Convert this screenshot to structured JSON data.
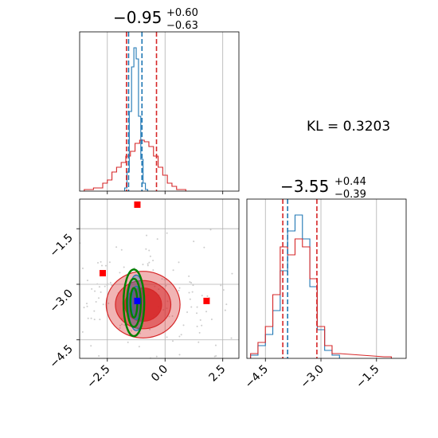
{
  "chart_data": [
    {
      "id": "hist-x",
      "type": "histogram",
      "title_main": "−0.95",
      "title_sup": "+0.60",
      "title_sub": "−0.63",
      "xlim": [
        -3.7,
        3.2
      ],
      "ylim": [
        0,
        1.0
      ],
      "grid": true,
      "xticks": [
        -2.5,
        0.0,
        2.5
      ],
      "quantile_lines": {
        "blue": {
          "color": "#1f77b4",
          "values": [
            -1.58,
            -1.0
          ]
        },
        "red": {
          "color": "#d62728",
          "values": [
            -1.67,
            -0.37
          ]
        }
      },
      "series": [
        {
          "color": "#1f77b4",
          "x": [
            -1.7,
            -1.6,
            -1.5,
            -1.4,
            -1.3,
            -1.2,
            -1.1,
            -1.0,
            -0.9,
            -0.8
          ],
          "values": [
            0.02,
            0.12,
            0.5,
            0.78,
            0.9,
            0.83,
            0.47,
            0.2,
            0.05,
            0.01
          ]
        },
        {
          "color": "#d62728",
          "x": [
            -3.4,
            -3.2,
            -3.0,
            -2.8,
            -2.6,
            -2.4,
            -2.2,
            -2.0,
            -1.8,
            -1.6,
            -1.4,
            -1.2,
            -1.0,
            -0.8,
            -0.6,
            -0.4,
            -0.2,
            0.0,
            0.2,
            0.4,
            0.6,
            0.8
          ],
          "values": [
            0.01,
            0.01,
            0.02,
            0.02,
            0.05,
            0.07,
            0.12,
            0.15,
            0.18,
            0.22,
            0.25,
            0.3,
            0.32,
            0.31,
            0.28,
            0.22,
            0.15,
            0.1,
            0.05,
            0.03,
            0.01,
            0.01
          ]
        }
      ]
    },
    {
      "id": "scatter-xy",
      "type": "scatter",
      "xlim": [
        -3.7,
        3.2
      ],
      "ylim": [
        -5.0,
        -0.7
      ],
      "grid": true,
      "xticks": [
        -2.5,
        0.0,
        2.5
      ],
      "xtick_labels": [
        "−2.5",
        "0.0",
        "2.5"
      ],
      "yticks": [
        -1.5,
        -3.0,
        -4.5
      ],
      "ytick_labels": [
        "−1.5",
        "−3.0",
        "−4.5"
      ],
      "red_markers": [
        {
          "x": -1.2,
          "y": -0.85
        },
        {
          "x": -2.7,
          "y": -2.7
        },
        {
          "x": 1.8,
          "y": -3.45
        }
      ],
      "blue_marker": {
        "x": -1.2,
        "y": -3.45,
        "color": "#0000ff"
      },
      "red_contours": {
        "color": "#d62728",
        "center": [
          -0.95,
          -3.55
        ],
        "levels": [
          [
            1.6,
            0.9
          ],
          [
            1.2,
            0.65
          ],
          [
            0.8,
            0.45
          ]
        ]
      },
      "green_contours": {
        "color": "#008000",
        "center": [
          -1.35,
          -3.5
        ],
        "levels": [
          [
            0.45,
            0.9
          ],
          [
            0.3,
            0.65
          ],
          [
            0.15,
            0.4
          ]
        ]
      },
      "blue_contours": {
        "color": "#1f77b4",
        "center": [
          -1.25,
          -3.5
        ],
        "levels": [
          [
            0.35,
            0.75
          ],
          [
            0.2,
            0.45
          ]
        ]
      }
    },
    {
      "id": "hist-y",
      "type": "histogram",
      "title_main": "−3.55",
      "title_sup": "+0.44",
      "title_sub": "−0.39",
      "xlim": [
        -5.0,
        -0.7
      ],
      "ylim": [
        0,
        1.0
      ],
      "grid": true,
      "xticks": [
        -4.5,
        -3.0,
        -1.5
      ],
      "xtick_labels": [
        "−4.5",
        "−3.0",
        "−1.5"
      ],
      "quantile_lines": {
        "blue": {
          "color": "#1f77b4",
          "values": [
            -3.9
          ]
        },
        "red": {
          "color": "#d62728",
          "values": [
            -4.03,
            -3.11
          ]
        }
      },
      "series": [
        {
          "color": "#1f77b4",
          "x": [
            -4.8,
            -4.6,
            -4.4,
            -4.2,
            -4.0,
            -3.8,
            -3.6,
            -3.4,
            -3.2,
            -3.0,
            -2.8,
            -2.6
          ],
          "values": [
            0.02,
            0.08,
            0.15,
            0.3,
            0.55,
            0.8,
            0.9,
            0.75,
            0.45,
            0.18,
            0.05,
            0.02
          ]
        },
        {
          "color": "#d62728",
          "x": [
            -4.8,
            -4.6,
            -4.4,
            -4.2,
            -4.0,
            -3.8,
            -3.6,
            -3.4,
            -3.2,
            -3.0,
            -2.8,
            -2.6,
            -1.2
          ],
          "values": [
            0.03,
            0.1,
            0.2,
            0.4,
            0.7,
            0.65,
            0.75,
            0.7,
            0.5,
            0.2,
            0.08,
            0.03,
            0.01
          ]
        }
      ]
    }
  ],
  "annotation": {
    "kl_text": "KL = 0.3203"
  },
  "xtick_labels_top": [
    "−2.5",
    "0.0",
    "2.5"
  ]
}
